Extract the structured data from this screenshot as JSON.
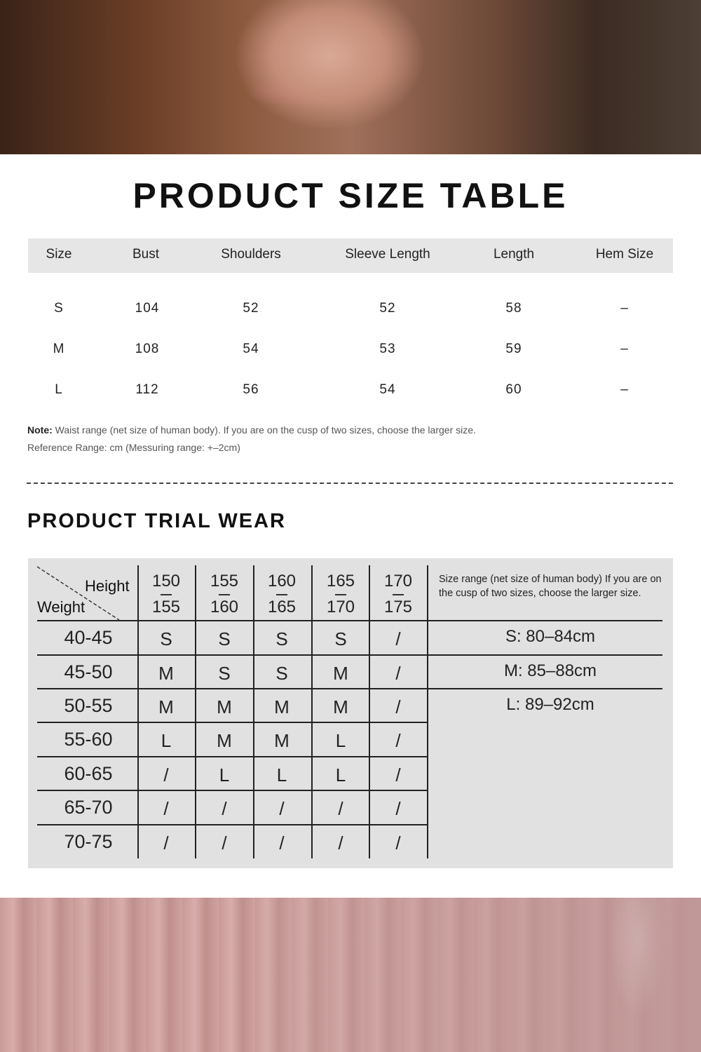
{
  "size_table": {
    "title": "PRODUCT SIZE TABLE",
    "columns": [
      "Size",
      "Bust",
      "Shoulders",
      "Sleeve Length",
      "Length",
      "Hem Size"
    ],
    "rows": [
      [
        "S",
        "104",
        "52",
        "52",
        "58",
        "–"
      ],
      [
        "M",
        "108",
        "54",
        "53",
        "59",
        "–"
      ],
      [
        "L",
        "112",
        "56",
        "54",
        "60",
        "–"
      ]
    ],
    "note_label": "Note:",
    "note_text": " Waist range (net size of human body). If you are on the cusp of two sizes, choose the larger size.",
    "reference": "Reference Range: cm (Messuring range: +–2cm)"
  },
  "trial_wear": {
    "title": "PRODUCT TRIAL WEAR",
    "corner_height": "Height",
    "corner_weight": "Weight",
    "heights": [
      [
        "150",
        "155"
      ],
      [
        "155",
        "160"
      ],
      [
        "160",
        "165"
      ],
      [
        "165",
        "170"
      ],
      [
        "170",
        "175"
      ]
    ],
    "size_range_note": "Size range (net size of human body) If you are on the cusp of two sizes, choose the larger size.",
    "rows": [
      {
        "weight": "40-45",
        "sizes": [
          "S",
          "S",
          "S",
          "S",
          "/"
        ]
      },
      {
        "weight": "45-50",
        "sizes": [
          "M",
          "S",
          "S",
          "M",
          "/"
        ]
      },
      {
        "weight": "50-55",
        "sizes": [
          "M",
          "M",
          "M",
          "M",
          "/"
        ]
      },
      {
        "weight": "55-60",
        "sizes": [
          "L",
          "M",
          "M",
          "L",
          "/"
        ]
      },
      {
        "weight": "60-65",
        "sizes": [
          "/",
          "L",
          "L",
          "L",
          "/"
        ]
      },
      {
        "weight": "65-70",
        "sizes": [
          "/",
          "/",
          "/",
          "/",
          "/"
        ]
      },
      {
        "weight": "70-75",
        "sizes": [
          "/",
          "/",
          "/",
          "/",
          "/"
        ]
      }
    ],
    "ranges": [
      "S: 80–84cm",
      "M: 85–88cm",
      "L: 89–92cm"
    ]
  }
}
